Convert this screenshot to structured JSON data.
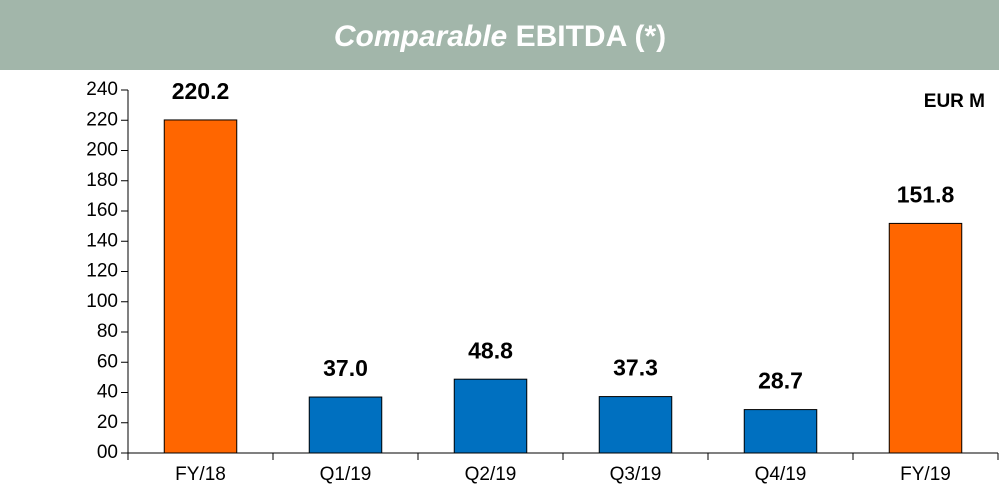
{
  "chart_data": {
    "type": "bar",
    "title_emphasis": "Comparable",
    "title": "EBITDA (*)",
    "annotation": "EUR M",
    "categories": [
      "FY/18",
      "Q1/19",
      "Q2/19",
      "Q3/19",
      "Q4/19",
      "FY/19"
    ],
    "values": [
      220.2,
      37,
      48.8,
      37.3,
      28.7,
      151.8
    ],
    "value_labels": [
      "220.2",
      "37.0",
      "48.8",
      "37.3",
      "28.7",
      "151.8"
    ],
    "colors": [
      "#ff6600",
      "#0070c0",
      "#0070c0",
      "#0070c0",
      "#0070c0",
      "#ff6600"
    ],
    "ylim": [
      0,
      240
    ],
    "yticks": [
      0,
      20,
      40,
      60,
      80,
      100,
      120,
      140,
      160,
      180,
      200,
      220,
      240
    ],
    "yticks_labels": [
      "00",
      "20",
      "40",
      "60",
      "80",
      "100",
      "120",
      "140",
      "160",
      "180",
      "200",
      "220",
      "240"
    ]
  }
}
